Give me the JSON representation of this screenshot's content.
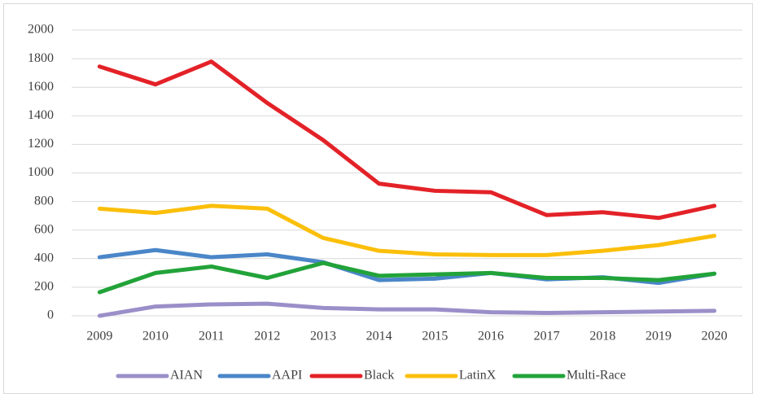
{
  "chart_data": {
    "type": "line",
    "categories": [
      "2009",
      "2010",
      "2011",
      "2012",
      "2013",
      "2014",
      "2015",
      "2016",
      "2017",
      "2018",
      "2019",
      "2020"
    ],
    "series": [
      {
        "name": "AIAN",
        "color": "#9b8fc9",
        "values": [
          0,
          65,
          80,
          85,
          55,
          45,
          45,
          25,
          20,
          25,
          30,
          35
        ]
      },
      {
        "name": "AAPI",
        "color": "#4a86c8",
        "values": [
          410,
          460,
          410,
          430,
          375,
          250,
          260,
          300,
          255,
          270,
          230,
          295
        ]
      },
      {
        "name": "Black",
        "color": "#e32228",
        "values": [
          1745,
          1620,
          1780,
          1490,
          1230,
          925,
          875,
          865,
          705,
          725,
          685,
          770
        ]
      },
      {
        "name": "LatinX",
        "color": "#fbbf0b",
        "values": [
          750,
          720,
          770,
          750,
          545,
          455,
          430,
          425,
          425,
          455,
          495,
          560
        ]
      },
      {
        "name": "Multi-Race",
        "color": "#22a339",
        "values": [
          165,
          300,
          345,
          265,
          370,
          280,
          290,
          300,
          265,
          265,
          250,
          295
        ]
      }
    ],
    "ylim": [
      0,
      2000
    ],
    "yticks": [
      0,
      200,
      400,
      600,
      800,
      1000,
      1200,
      1400,
      1600,
      1800,
      2000
    ],
    "grid": true,
    "legend": "bottom"
  }
}
